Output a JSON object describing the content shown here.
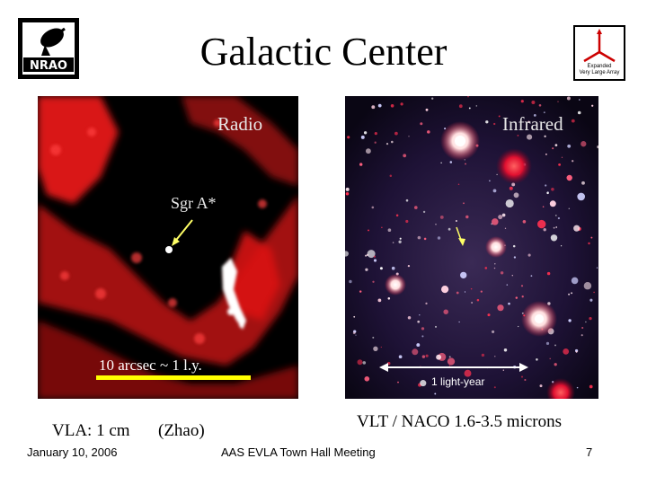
{
  "slide": {
    "title": "Galactic Center",
    "logos": {
      "left_icon": "nrao-logo",
      "right_icon": "evla-logo",
      "right_line1": "Expanded",
      "right_line2": "Very Large Array"
    },
    "radio_panel": {
      "label": "Radio",
      "source_label": "Sgr A*",
      "scale_text": "10 arcsec ~ 1 l.y.",
      "caption_left": "VLA: 1 cm",
      "caption_right": "(Zhao)"
    },
    "infrared_panel": {
      "label": "Infrared",
      "scale_text": "1 light-year",
      "caption": "VLT / NACO  1.6-3.5 microns"
    },
    "footer": {
      "date": "January 10, 2006",
      "event": "AAS EVLA Town Hall Meeting",
      "page_number": "7"
    },
    "colors": {
      "radio_emission": "#ff1a1a",
      "scale_bar": "#ffff00",
      "ir_background": "#1a0c2a"
    }
  }
}
